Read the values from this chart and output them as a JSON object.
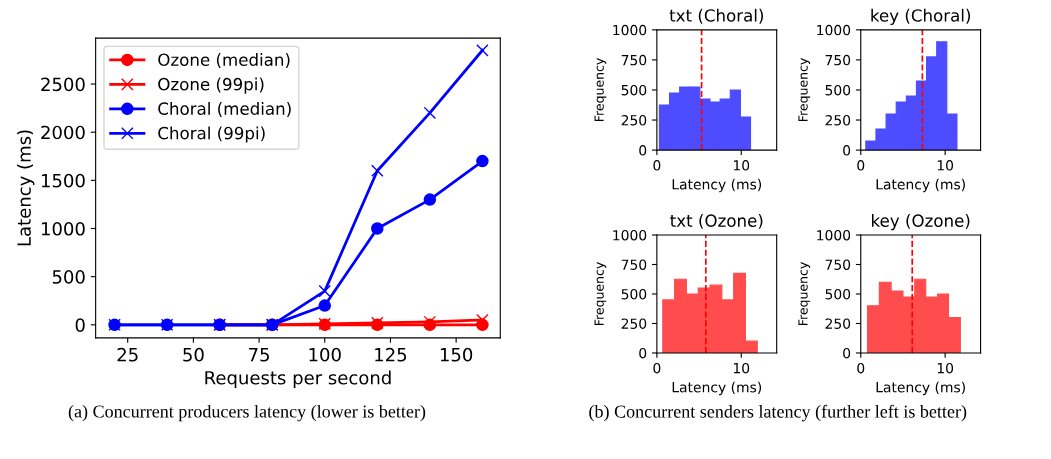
{
  "chart_data": [
    {
      "type": "line",
      "xlabel": "Requests per second",
      "ylabel": "Latency (ms)",
      "x": [
        20,
        40,
        60,
        80,
        100,
        120,
        140,
        160
      ],
      "series": [
        {
          "name": "Ozone (median)",
          "color": "#ff0000",
          "marker": "circle",
          "values": [
            null,
            null,
            0,
            0,
            0,
            0,
            0,
            0
          ]
        },
        {
          "name": "Ozone (99pi)",
          "color": "#ff0000",
          "marker": "cross",
          "values": [
            null,
            null,
            0,
            0,
            10,
            20,
            30,
            50
          ]
        },
        {
          "name": "Choral (median)",
          "color": "#0000ff",
          "marker": "circle",
          "values": [
            0,
            0,
            0,
            0,
            200,
            1000,
            1300,
            1700
          ]
        },
        {
          "name": "Choral (99pi)",
          "color": "#0000ff",
          "marker": "cross",
          "values": [
            0,
            0,
            0,
            0,
            350,
            1600,
            2200,
            2850
          ]
        }
      ],
      "xlim": [
        12.8,
        166.8
      ],
      "ylim": [
        -135,
        2977
      ],
      "xticks": [
        25,
        50,
        75,
        100,
        125,
        150
      ],
      "yticks": [
        0,
        500,
        1000,
        1500,
        2000,
        2500
      ],
      "legend": "top left",
      "grid": false,
      "annotations": [
        "(a) Concurrent producers latency (lower is better)"
      ]
    },
    {
      "type": "histogram",
      "title": "txt (Choral)",
      "xlabel": "Latency (ms)",
      "ylabel": "Frequency",
      "color": "#4d4dff",
      "bins": [
        0.3,
        1.5,
        2.7,
        3.9,
        5.1,
        6.3,
        7.5,
        8.7,
        9.9,
        11.1
      ],
      "values": [
        375,
        475,
        525,
        525,
        425,
        400,
        425,
        500,
        275
      ],
      "xlim": [
        0,
        14.2
      ],
      "ylim": [
        0,
        1000
      ],
      "xticks": [
        0,
        10
      ],
      "yticks": [
        0,
        250,
        500,
        750,
        1000
      ],
      "grid": false,
      "ref_lines": [
        {
          "axis": "x",
          "value": 5.3,
          "color": "#ff0000",
          "line_style": "dashed"
        }
      ]
    },
    {
      "type": "histogram",
      "title": "key (Choral)",
      "xlabel": "Latency (ms)",
      "ylabel": "Frequency",
      "color": "#4d4dff",
      "bins": [
        0.6,
        1.8,
        3.0,
        4.2,
        5.4,
        6.6,
        7.8,
        9.0,
        10.2,
        11.4
      ],
      "values": [
        75,
        175,
        300,
        400,
        450,
        575,
        775,
        900,
        300
      ],
      "xlim": [
        0,
        14.2
      ],
      "ylim": [
        0,
        1000
      ],
      "xticks": [
        0,
        10
      ],
      "yticks": [
        0,
        250,
        500,
        750,
        1000
      ],
      "grid": false,
      "ref_lines": [
        {
          "axis": "x",
          "value": 7.3,
          "color": "#ff0000",
          "line_style": "dashed"
        }
      ]
    },
    {
      "type": "histogram",
      "title": "txt (Ozone)",
      "xlabel": "Latency (ms)",
      "ylabel": "Frequency",
      "color": "#ff4d4d",
      "bins": [
        0.7,
        2.1,
        3.5,
        4.9,
        6.3,
        7.7,
        9.1,
        10.5,
        11.9
      ],
      "values": [
        450,
        625,
        500,
        550,
        575,
        450,
        675,
        100
      ],
      "xlim": [
        0,
        14.2
      ],
      "ylim": [
        0,
        1000
      ],
      "xticks": [
        0,
        10
      ],
      "yticks": [
        0,
        250,
        500,
        750,
        1000
      ],
      "grid": false,
      "ref_lines": [
        {
          "axis": "x",
          "value": 5.8,
          "color": "#ff0000",
          "line_style": "dashed"
        }
      ],
      "annotations": [
        "(b) Concurrent senders latency (further left is better)"
      ]
    },
    {
      "type": "histogram",
      "title": "key (Ozone)",
      "xlabel": "Latency (ms)",
      "ylabel": "Frequency",
      "color": "#ff4d4d",
      "bins": [
        0.8,
        2.2,
        3.6,
        5.0,
        6.4,
        7.7,
        9.1,
        10.4,
        11.8
      ],
      "values": [
        400,
        600,
        525,
        475,
        625,
        475,
        500,
        300
      ],
      "xlim": [
        0,
        14.2
      ],
      "ylim": [
        0,
        1000
      ],
      "xticks": [
        0,
        10
      ],
      "yticks": [
        0,
        250,
        500,
        750,
        1000
      ],
      "grid": false,
      "ref_lines": [
        {
          "axis": "x",
          "value": 6.1,
          "color": "#ff0000",
          "line_style": "dashed"
        }
      ]
    }
  ]
}
